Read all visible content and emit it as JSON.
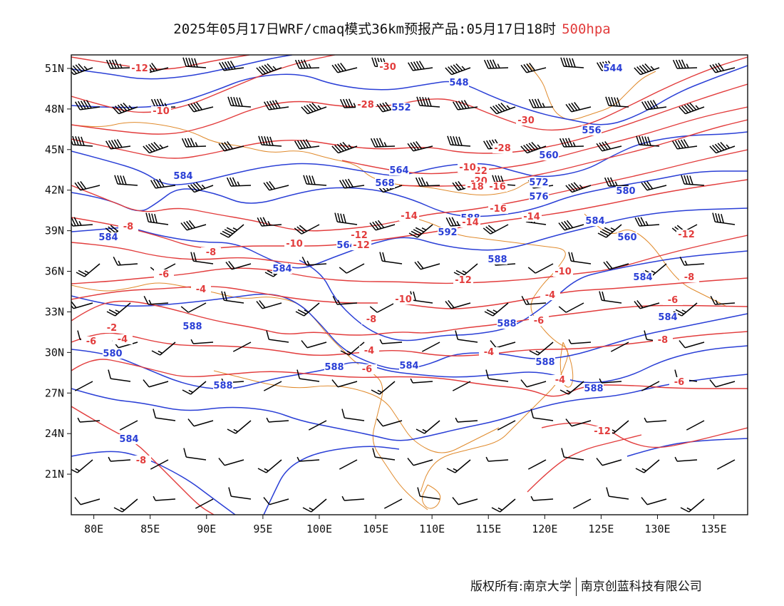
{
  "header": {
    "title": "2025年05月17日WRF/cmaq模式36km预报产品:05月17日18时",
    "level": "500hpa"
  },
  "axes": {
    "y_ticks": [
      "51N",
      "48N",
      "45N",
      "42N",
      "39N",
      "36N",
      "33N",
      "30N",
      "27N",
      "24N",
      "21N"
    ],
    "x_ticks": [
      "80E",
      "85E",
      "90E",
      "95E",
      "100E",
      "105E",
      "110E",
      "115E",
      "120E",
      "125E",
      "130E",
      "135E"
    ]
  },
  "map_extent": {
    "lon": [
      78,
      138
    ],
    "lat": [
      18,
      52
    ]
  },
  "colors": {
    "height_contours": "#2a3fd6",
    "temperature_contours": "#e23c3c",
    "boundaries": "#e08a2c",
    "wind_barbs": "#000000"
  },
  "height_labels": [
    "544",
    "548",
    "552",
    "556",
    "560",
    "564",
    "568",
    "572",
    "576",
    "580",
    "584",
    "588",
    "592",
    "560",
    "564",
    "584",
    "588",
    "584",
    "584",
    "584",
    "588",
    "580",
    "588",
    "584",
    "588",
    "588",
    "584",
    "588",
    "588",
    "584"
  ],
  "temperature_labels": [
    "-12",
    "-10",
    "-30",
    "-28",
    "-30",
    "-28",
    "-22",
    "-20",
    "-18",
    "-16",
    "-14",
    "-14",
    "-12",
    "-10",
    "-8",
    "-8",
    "-6",
    "-4",
    "-2",
    "-4",
    "-6",
    "-4",
    "-6",
    "-4",
    "-8",
    "-10",
    "-12",
    "-12",
    "-10",
    "-8",
    "-6",
    "-6",
    "-4",
    "-4",
    "-12",
    "-12",
    "-14",
    "-16",
    "-10",
    "-8",
    "-6",
    "-8"
  ],
  "footer": {
    "copyright_left": "版权所有:南京大学",
    "copyright_right": "南京创蓝科技有限公司"
  }
}
